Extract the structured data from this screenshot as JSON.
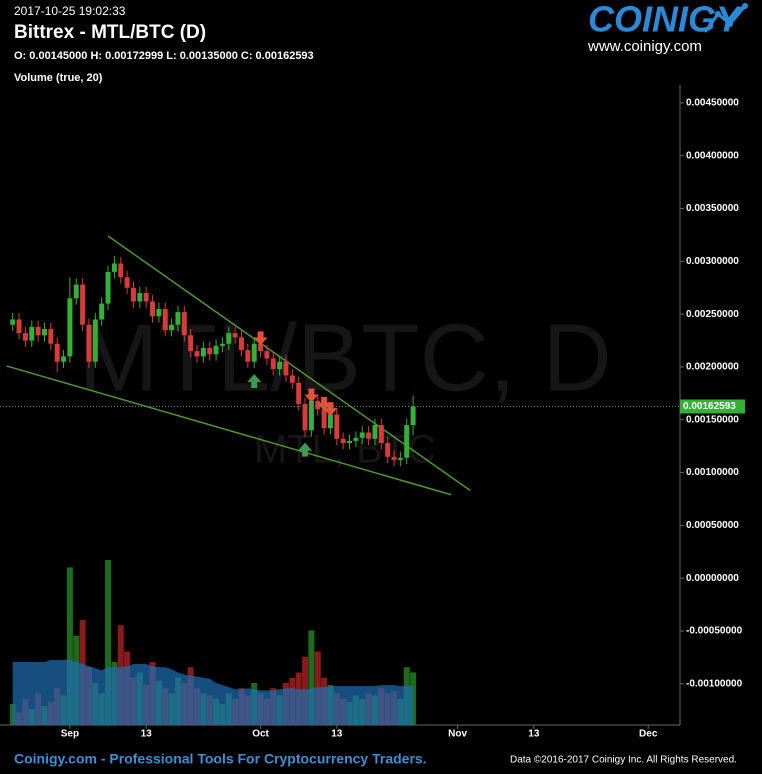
{
  "chart_data": {
    "type": "candlestick",
    "timestamp": "2017-10-25 19:02:33",
    "title": "Bittrex - MTL/BTC (D)",
    "ohlc_legend": "O: 0.00145000 H: 0.00172999 L: 0.00135000 C: 0.00162593",
    "volume_legend": "Volume (true, 20)",
    "watermark": "MTL/BTC, D",
    "watermark_small": "MTL, BTC",
    "logo": "COINIGY",
    "logo_url": "www.coinigy.com",
    "footer_left": "Coinigy.com - Professional Tools For Cryptocurrency Traders.",
    "footer_right": "Data ©2016-2017 Coinigy Inc. All Rights Reserved.",
    "up_color": "#34b034",
    "down_color": "#d93a3a",
    "volume_up_color": "#1e6b1e",
    "volume_down_color": "#8b1a1a",
    "volume_ma_color": "#1f6fb5",
    "trendline_color": "#4c9a2a",
    "grid": false,
    "x": [
      "2017-08-23",
      "2017-08-24",
      "2017-08-25",
      "2017-08-26",
      "2017-08-27",
      "2017-08-28",
      "2017-08-29",
      "2017-08-30",
      "2017-08-31",
      "2017-09-01",
      "2017-09-02",
      "2017-09-03",
      "2017-09-04",
      "2017-09-05",
      "2017-09-06",
      "2017-09-07",
      "2017-09-08",
      "2017-09-09",
      "2017-09-10",
      "2017-09-11",
      "2017-09-12",
      "2017-09-13",
      "2017-09-14",
      "2017-09-15",
      "2017-09-16",
      "2017-09-17",
      "2017-09-18",
      "2017-09-19",
      "2017-09-20",
      "2017-09-21",
      "2017-09-22",
      "2017-09-23",
      "2017-09-24",
      "2017-09-25",
      "2017-09-26",
      "2017-09-27",
      "2017-09-28",
      "2017-09-29",
      "2017-09-30",
      "2017-10-01",
      "2017-10-02",
      "2017-10-03",
      "2017-10-04",
      "2017-10-05",
      "2017-10-06",
      "2017-10-07",
      "2017-10-08",
      "2017-10-09",
      "2017-10-10",
      "2017-10-11",
      "2017-10-12",
      "2017-10-13",
      "2017-10-14",
      "2017-10-15",
      "2017-10-16",
      "2017-10-17",
      "2017-10-18",
      "2017-10-19",
      "2017-10-20",
      "2017-10-21",
      "2017-10-22",
      "2017-10-23",
      "2017-10-24",
      "2017-10-25"
    ],
    "open": [
      0.0024,
      0.00245,
      0.00232,
      0.00225,
      0.00238,
      0.0023,
      0.00236,
      0.00222,
      0.00205,
      0.0021,
      0.00265,
      0.00278,
      0.0024,
      0.00205,
      0.00245,
      0.0026,
      0.0029,
      0.00298,
      0.00285,
      0.00275,
      0.00262,
      0.0027,
      0.00262,
      0.00248,
      0.00255,
      0.00235,
      0.0024,
      0.00252,
      0.0023,
      0.00215,
      0.0021,
      0.00218,
      0.00212,
      0.0022,
      0.00222,
      0.00232,
      0.00228,
      0.00216,
      0.00205,
      0.00222,
      0.00215,
      0.00208,
      0.00198,
      0.00205,
      0.00192,
      0.00185,
      0.00165,
      0.0014,
      0.00168,
      0.0016,
      0.00142,
      0.00155,
      0.00132,
      0.00128,
      0.0013,
      0.00133,
      0.00138,
      0.00132,
      0.00145,
      0.00128,
      0.00115,
      0.00112,
      0.00114,
      0.00145
    ],
    "high": [
      0.00251,
      0.00251,
      0.00238,
      0.00244,
      0.00244,
      0.00242,
      0.00242,
      0.00228,
      0.00216,
      0.00285,
      0.00284,
      0.00284,
      0.00246,
      0.00251,
      0.00266,
      0.00296,
      0.00305,
      0.00304,
      0.00291,
      0.00281,
      0.00276,
      0.00276,
      0.00268,
      0.00261,
      0.00261,
      0.00246,
      0.00258,
      0.00258,
      0.00236,
      0.00221,
      0.00224,
      0.00224,
      0.00226,
      0.00228,
      0.00238,
      0.00238,
      0.00234,
      0.00222,
      0.00228,
      0.00228,
      0.00221,
      0.00214,
      0.00211,
      0.00211,
      0.00198,
      0.00191,
      0.00171,
      0.00174,
      0.00174,
      0.00166,
      0.00161,
      0.00161,
      0.00138,
      0.00136,
      0.00139,
      0.00144,
      0.00144,
      0.00151,
      0.00151,
      0.00134,
      0.00121,
      0.0012,
      0.00151,
      0.00172999
    ],
    "low": [
      0.00234,
      0.00226,
      0.00219,
      0.00219,
      0.00224,
      0.00224,
      0.00216,
      0.00195,
      0.00199,
      0.00204,
      0.00259,
      0.00234,
      0.00199,
      0.00199,
      0.00239,
      0.00254,
      0.00284,
      0.00279,
      0.00269,
      0.00256,
      0.00256,
      0.00256,
      0.00242,
      0.00242,
      0.00229,
      0.00229,
      0.00234,
      0.00224,
      0.00209,
      0.00204,
      0.00204,
      0.00206,
      0.00206,
      0.00214,
      0.00216,
      0.00222,
      0.0021,
      0.00199,
      0.00199,
      0.00209,
      0.00202,
      0.00192,
      0.00192,
      0.00186,
      0.00179,
      0.00159,
      0.00134,
      0.00134,
      0.00154,
      0.00136,
      0.00136,
      0.00126,
      0.00122,
      0.00122,
      0.00124,
      0.00127,
      0.00126,
      0.00126,
      0.00122,
      0.00109,
      0.00106,
      0.00106,
      0.00108,
      0.00135
    ],
    "close": [
      0.00245,
      0.00232,
      0.00225,
      0.00238,
      0.0023,
      0.00236,
      0.00222,
      0.00205,
      0.0021,
      0.00265,
      0.00278,
      0.0024,
      0.00205,
      0.00245,
      0.0026,
      0.0029,
      0.00298,
      0.00285,
      0.00275,
      0.00262,
      0.0027,
      0.00262,
      0.00248,
      0.00255,
      0.00235,
      0.0024,
      0.00252,
      0.0023,
      0.00215,
      0.0021,
      0.00218,
      0.00212,
      0.0022,
      0.00222,
      0.00232,
      0.00228,
      0.00216,
      0.00205,
      0.00222,
      0.00215,
      0.00208,
      0.00198,
      0.00205,
      0.00192,
      0.00185,
      0.00165,
      0.0014,
      0.00168,
      0.0016,
      0.00142,
      0.00155,
      0.00132,
      0.00128,
      0.0013,
      0.00133,
      0.00138,
      0.00132,
      0.00145,
      0.00128,
      0.00115,
      0.00112,
      0.00114,
      0.00145,
      0.00162593
    ],
    "volume": [
      20,
      12,
      25,
      15,
      30,
      18,
      22,
      35,
      28,
      150,
      85,
      100,
      55,
      40,
      30,
      157,
      60,
      95,
      70,
      45,
      50,
      38,
      60,
      42,
      35,
      30,
      45,
      40,
      55,
      35,
      30,
      28,
      25,
      20,
      30,
      25,
      35,
      28,
      40,
      30,
      25,
      35,
      28,
      40,
      45,
      50,
      65,
      90,
      70,
      45,
      38,
      30,
      25,
      22,
      28,
      25,
      30,
      28,
      35,
      30,
      32,
      25,
      55,
      50
    ],
    "volume_ma": [
      60,
      60,
      60,
      60,
      60,
      60,
      62,
      62,
      62,
      62,
      60,
      58,
      56,
      54,
      52,
      55,
      55,
      55,
      56,
      58,
      58,
      58,
      56,
      55,
      55,
      53,
      50,
      48,
      47,
      46,
      45,
      44,
      40,
      38,
      36,
      34,
      34,
      35,
      34,
      33,
      33,
      33,
      34,
      35,
      35,
      34,
      34,
      35,
      36,
      36,
      37,
      37,
      37,
      37,
      37,
      37,
      37,
      37,
      38,
      38,
      38,
      37,
      37,
      38
    ],
    "last_price": {
      "value": 0.00162593,
      "label": "0.00162593"
    },
    "trendlines": [
      {
        "x": [
          "2017-09-07",
          "2017-11-03"
        ],
        "y": [
          0.00324,
          0.00083
        ]
      },
      {
        "x": [
          "2017-08-22",
          "2017-10-31"
        ],
        "y": [
          0.00201,
          0.00079
        ]
      }
    ],
    "signals": [
      {
        "x": "2017-09-30",
        "direction": "up"
      },
      {
        "x": "2017-10-01",
        "direction": "down"
      },
      {
        "x": "2017-10-08",
        "direction": "up"
      },
      {
        "x": "2017-10-09",
        "direction": "down"
      },
      {
        "x": "2017-10-11",
        "direction": "down"
      },
      {
        "x": "2017-10-12",
        "direction": "down"
      }
    ],
    "xlim": [
      "2017-08-21",
      "2017-12-06"
    ],
    "xticks": [
      {
        "value": "2017-09-01",
        "label": "Sep"
      },
      {
        "value": "2017-09-13",
        "label": "13"
      },
      {
        "value": "2017-10-01",
        "label": "Oct"
      },
      {
        "value": "2017-10-13",
        "label": "13"
      },
      {
        "value": "2017-11-01",
        "label": "Nov"
      },
      {
        "value": "2017-11-13",
        "label": "13"
      },
      {
        "value": "2017-12-01",
        "label": "Dec"
      }
    ],
    "ylim": [
      -0.00139,
      0.00467
    ],
    "yticks": [
      {
        "value": 0.0045,
        "label": "0.00450000"
      },
      {
        "value": 0.004,
        "label": "0.00400000"
      },
      {
        "value": 0.0035,
        "label": "0.00350000"
      },
      {
        "value": 0.003,
        "label": "0.00300000"
      },
      {
        "value": 0.0025,
        "label": "0.00250000"
      },
      {
        "value": 0.002,
        "label": "0.00200000"
      },
      {
        "value": 0.0015,
        "label": "0.00150000"
      },
      {
        "value": 0.001,
        "label": "0.00100000"
      },
      {
        "value": 0.0005,
        "label": "0.00050000"
      },
      {
        "value": 0,
        "label": "0.00000000"
      },
      {
        "value": -0.0005,
        "label": "-0.00050000"
      },
      {
        "value": -0.001,
        "label": "-0.00100000"
      }
    ]
  }
}
